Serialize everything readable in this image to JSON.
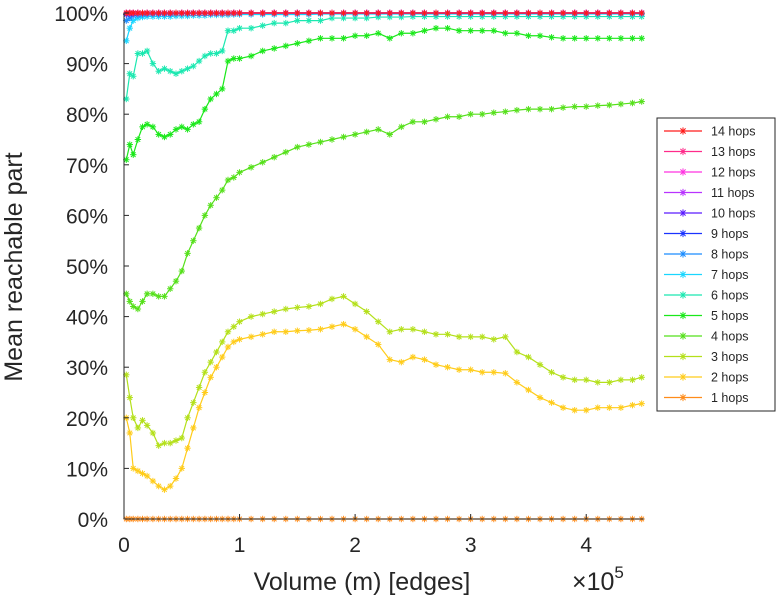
{
  "chart_data": {
    "type": "line",
    "title": "",
    "xlabel": "Volume (m) [edges]",
    "ylabel": "Mean reachable part",
    "x_multiplier": "×10",
    "x_multiplier_exp": "5",
    "xlim": [
      0,
      4.5
    ],
    "ylim": [
      0,
      100
    ],
    "xticks": [
      0,
      1,
      2,
      3,
      4
    ],
    "xtick_labels": [
      "0",
      "1",
      "2",
      "3",
      "4"
    ],
    "yticks": [
      0,
      10,
      20,
      30,
      40,
      50,
      60,
      70,
      80,
      90,
      100
    ],
    "ytick_labels": [
      "0%",
      "10%",
      "20%",
      "30%",
      "40%",
      "50%",
      "60%",
      "70%",
      "80%",
      "90%",
      "100%"
    ],
    "legend_position": "right",
    "marker": "*",
    "x": [
      0.02,
      0.05,
      0.08,
      0.12,
      0.16,
      0.2,
      0.25,
      0.3,
      0.35,
      0.4,
      0.45,
      0.5,
      0.55,
      0.6,
      0.65,
      0.7,
      0.75,
      0.8,
      0.85,
      0.9,
      0.95,
      1.0,
      1.1,
      1.2,
      1.3,
      1.4,
      1.5,
      1.6,
      1.7,
      1.8,
      1.9,
      2.0,
      2.1,
      2.2,
      2.3,
      2.4,
      2.5,
      2.6,
      2.7,
      2.8,
      2.9,
      3.0,
      3.1,
      3.2,
      3.3,
      3.4,
      3.5,
      3.6,
      3.7,
      3.8,
      3.9,
      4.0,
      4.1,
      4.2,
      4.3,
      4.4,
      4.48
    ],
    "series": [
      {
        "name": "14 hops",
        "color": "#ff1a1a",
        "values": [
          100,
          100,
          100,
          100,
          100,
          100,
          100,
          100,
          100,
          100,
          100,
          100,
          100,
          100,
          100,
          100,
          100,
          100,
          100,
          100,
          100,
          100,
          100,
          100,
          100,
          100,
          100,
          100,
          100,
          100,
          100,
          100,
          100,
          100,
          100,
          100,
          100,
          100,
          100,
          100,
          100,
          100,
          100,
          100,
          100,
          100,
          100,
          100,
          100,
          100,
          100,
          100,
          100,
          100,
          100,
          100,
          100
        ]
      },
      {
        "name": "13 hops",
        "color": "#ff2b8a",
        "values": [
          100,
          100,
          100,
          100,
          100,
          100,
          100,
          100,
          100,
          100,
          100,
          100,
          100,
          100,
          100,
          100,
          100,
          100,
          100,
          100,
          100,
          100,
          100,
          100,
          100,
          100,
          100,
          100,
          100,
          100,
          100,
          100,
          100,
          100,
          100,
          100,
          100,
          100,
          100,
          100,
          100,
          100,
          100,
          100,
          100,
          100,
          100,
          100,
          100,
          100,
          100,
          100,
          100,
          100,
          100,
          100,
          100
        ]
      },
      {
        "name": "12 hops",
        "color": "#ff33e0",
        "values": [
          100,
          100,
          100,
          100,
          100,
          100,
          100,
          100,
          100,
          100,
          100,
          100,
          100,
          100,
          100,
          100,
          100,
          100,
          100,
          100,
          100,
          100,
          100,
          100,
          100,
          100,
          100,
          100,
          100,
          100,
          100,
          100,
          100,
          100,
          100,
          100,
          100,
          100,
          100,
          100,
          100,
          100,
          100,
          100,
          100,
          100,
          100,
          100,
          100,
          100,
          100,
          100,
          100,
          100,
          100,
          100,
          100
        ]
      },
      {
        "name": "11 hops",
        "color": "#b833ff",
        "values": [
          100,
          100,
          100,
          100,
          100,
          100,
          100,
          100,
          100,
          100,
          100,
          100,
          100,
          100,
          100,
          100,
          100,
          100,
          100,
          100,
          100,
          100,
          100,
          100,
          100,
          100,
          100,
          100,
          100,
          100,
          100,
          100,
          100,
          100,
          100,
          100,
          100,
          100,
          100,
          100,
          100,
          100,
          100,
          100,
          100,
          100,
          100,
          100,
          100,
          100,
          100,
          100,
          100,
          100,
          100,
          100,
          100
        ]
      },
      {
        "name": "10 hops",
        "color": "#5a1aff",
        "values": [
          100,
          100,
          100,
          100,
          100,
          100,
          100,
          100,
          100,
          100,
          100,
          100,
          100,
          100,
          100,
          100,
          100,
          100,
          100,
          100,
          100,
          100,
          100,
          100,
          100,
          100,
          100,
          100,
          100,
          100,
          100,
          100,
          100,
          100,
          100,
          100,
          100,
          100,
          100,
          100,
          100,
          100,
          100,
          100,
          100,
          100,
          100,
          100,
          100,
          100,
          100,
          100,
          100,
          100,
          100,
          100,
          100
        ]
      },
      {
        "name": "9 hops",
        "color": "#1a33ff",
        "values": [
          99.7,
          99.8,
          99.9,
          100,
          100,
          100,
          100,
          100,
          100,
          100,
          100,
          100,
          100,
          100,
          100,
          100,
          100,
          100,
          100,
          100,
          100,
          100,
          100,
          100,
          100,
          100,
          100,
          100,
          100,
          100,
          100,
          100,
          100,
          100,
          100,
          100,
          100,
          100,
          100,
          100,
          100,
          100,
          100,
          100,
          100,
          100,
          100,
          100,
          100,
          100,
          100,
          100,
          100,
          100,
          100,
          100,
          100
        ]
      },
      {
        "name": "8 hops",
        "color": "#1a8cff",
        "values": [
          98.5,
          99.0,
          99.5,
          99.6,
          99.7,
          99.8,
          99.8,
          99.8,
          99.8,
          99.8,
          99.9,
          99.9,
          99.9,
          99.9,
          99.9,
          99.9,
          99.9,
          99.9,
          99.9,
          99.9,
          100,
          100,
          100,
          100,
          100,
          100,
          100,
          100,
          100,
          100,
          100,
          100,
          100,
          100,
          100,
          100,
          100,
          100,
          100,
          100,
          100,
          100,
          100,
          100,
          100,
          100,
          100,
          100,
          100,
          100,
          100,
          100,
          100,
          100,
          100,
          100,
          100
        ]
      },
      {
        "name": "7 hops",
        "color": "#1ad6ff",
        "values": [
          94.5,
          97.0,
          98.5,
          99.0,
          99.2,
          99.3,
          99.3,
          99.3,
          99.3,
          99.3,
          99.4,
          99.4,
          99.4,
          99.5,
          99.5,
          99.5,
          99.6,
          99.6,
          99.6,
          99.6,
          99.7,
          99.7,
          99.7,
          99.7,
          99.7,
          99.7,
          99.7,
          99.7,
          99.8,
          99.8,
          99.8,
          99.8,
          99.8,
          99.8,
          99.8,
          99.8,
          99.8,
          99.8,
          99.8,
          99.8,
          99.8,
          99.8,
          99.8,
          99.8,
          99.8,
          99.8,
          99.8,
          99.8,
          99.8,
          99.8,
          99.8,
          99.8,
          99.8,
          99.8,
          99.8,
          99.8,
          99.8
        ]
      },
      {
        "name": "6 hops",
        "color": "#1ae8b0",
        "values": [
          83,
          88,
          87.5,
          92,
          92,
          92.5,
          90,
          88.5,
          89,
          88.5,
          88,
          88.5,
          89,
          89.5,
          90.5,
          91.5,
          92,
          92,
          92.5,
          96.5,
          96.5,
          97,
          97,
          97.5,
          98,
          98,
          98.5,
          98.5,
          98.5,
          99,
          99,
          99,
          99,
          99.2,
          99.2,
          99.2,
          99.3,
          99.3,
          99.3,
          99.3,
          99.3,
          99.3,
          99.3,
          99.3,
          99.3,
          99.3,
          99.3,
          99.3,
          99.3,
          99.3,
          99.3,
          99.3,
          99.3,
          99.3,
          99.3,
          99.3,
          99.3
        ]
      },
      {
        "name": "5 hops",
        "color": "#1ae81a",
        "values": [
          71,
          74,
          72,
          75,
          77.5,
          78,
          77.5,
          76,
          75.5,
          76,
          77,
          77.5,
          77,
          78,
          78.5,
          81,
          83,
          84,
          85,
          90.5,
          91,
          91,
          91.5,
          92.5,
          93,
          93.5,
          94,
          94.5,
          95,
          95,
          95,
          95.5,
          95.5,
          96,
          95,
          96,
          96,
          96.5,
          97,
          97,
          96.5,
          96.5,
          96.5,
          96.5,
          96,
          96,
          95.5,
          95.5,
          95.2,
          95,
          95,
          95,
          95,
          95,
          95,
          95,
          95
        ]
      },
      {
        "name": "4 hops",
        "color": "#55e01a",
        "values": [
          44.5,
          43,
          42,
          41.5,
          43,
          44.5,
          44.5,
          44,
          44,
          45.5,
          47,
          49,
          52.5,
          55,
          57.5,
          60,
          62,
          63.5,
          65,
          67,
          67.5,
          68.5,
          69.5,
          70.5,
          71.5,
          72.5,
          73.5,
          74,
          74.5,
          75,
          75.5,
          76,
          76.5,
          77,
          76,
          77.5,
          78.5,
          78.5,
          79,
          79.5,
          79.5,
          80,
          80,
          80.3,
          80.5,
          80.8,
          81,
          81,
          81,
          81.3,
          81.5,
          81.5,
          81.7,
          81.8,
          82,
          82.2,
          82.5
        ]
      },
      {
        "name": "3 hops",
        "color": "#b4e01a",
        "values": [
          28.5,
          24,
          20,
          18,
          19.5,
          18.5,
          17,
          14.5,
          15,
          15,
          15.5,
          16,
          20,
          23,
          26,
          29,
          31,
          33,
          35,
          37,
          38,
          39,
          40,
          40.5,
          41,
          41.5,
          41.8,
          42,
          42.5,
          43.5,
          44,
          42.5,
          41,
          39,
          37,
          37.5,
          37.5,
          37,
          36.5,
          36.5,
          36,
          36,
          36,
          35.5,
          36,
          33,
          32,
          30.5,
          29,
          28,
          27.5,
          27.5,
          27,
          27,
          27.5,
          27.5,
          28
        ]
      },
      {
        "name": "2 hops",
        "color": "#ffcc1a",
        "values": [
          20,
          17,
          10,
          9.5,
          9,
          8.5,
          7.5,
          6.5,
          5.8,
          6.5,
          8,
          10,
          14,
          18,
          22,
          25,
          28,
          30,
          32,
          34,
          35,
          35.5,
          36,
          36.5,
          37,
          37,
          37.2,
          37.3,
          37.5,
          38,
          38.5,
          37.5,
          36,
          34.5,
          31.5,
          31,
          32,
          31.5,
          30.5,
          30,
          29.5,
          29.5,
          29,
          29,
          28.8,
          27,
          25.5,
          24,
          23,
          22,
          21.5,
          21.5,
          22,
          22,
          22,
          22.5,
          22.8
        ]
      },
      {
        "name": "1 hops",
        "color": "#ff8c1a",
        "values": [
          0,
          0,
          0,
          0,
          0,
          0,
          0,
          0,
          0,
          0,
          0,
          0,
          0,
          0,
          0,
          0,
          0,
          0,
          0,
          0,
          0,
          0,
          0,
          0,
          0,
          0,
          0,
          0,
          0,
          0,
          0,
          0,
          0,
          0,
          0,
          0,
          0,
          0,
          0,
          0,
          0,
          0,
          0,
          0,
          0,
          0,
          0,
          0,
          0,
          0,
          0,
          0,
          0,
          0,
          0,
          0,
          0
        ]
      }
    ]
  }
}
